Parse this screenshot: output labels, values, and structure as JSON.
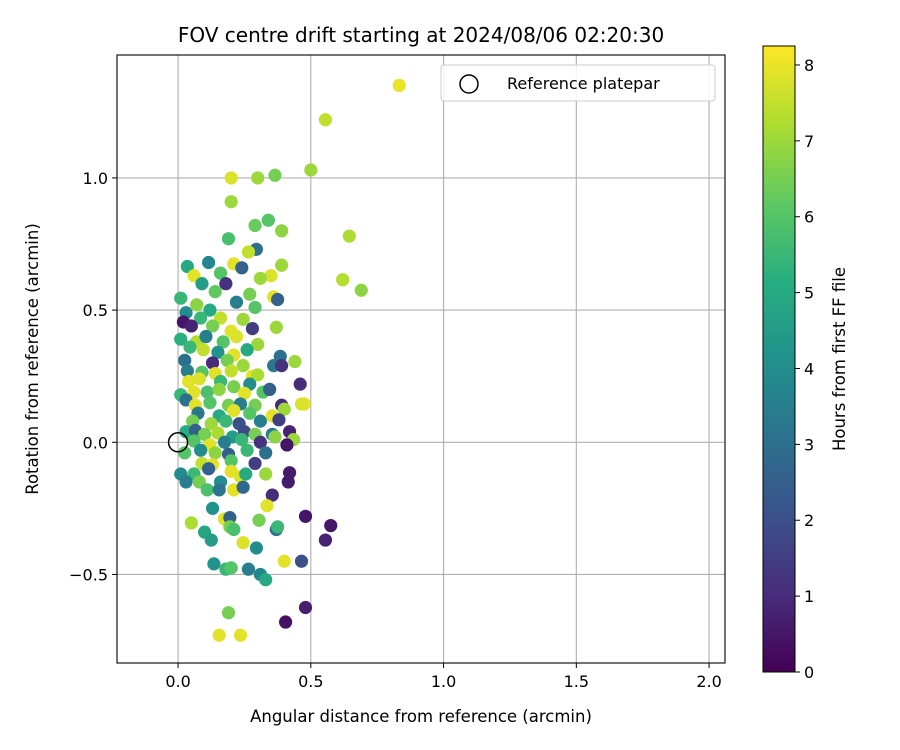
{
  "chart_data": {
    "type": "scatter",
    "title": "FOV centre drift starting at 2024/08/06 02:20:30",
    "xlabel": "Angular distance from reference (arcmin)",
    "ylabel": "Rotation from reference (arcmin)",
    "xlim": [
      -0.23,
      2.06
    ],
    "ylim": [
      -0.835,
      1.465
    ],
    "xticks": [
      0.0,
      0.5,
      1.0,
      1.5,
      2.0
    ],
    "xtick_labels": [
      "0.0",
      "0.5",
      "1.0",
      "1.5",
      "2.0"
    ],
    "yticks": [
      -0.5,
      0.0,
      0.5,
      1.0
    ],
    "ytick_labels": [
      "−0.5",
      "0.0",
      "0.5",
      "1.0"
    ],
    "grid": true,
    "legend": {
      "position": "top-right",
      "entries": [
        "Reference platepar"
      ]
    },
    "colorbar": {
      "label": "Hours from first FF file",
      "colormap": "viridis",
      "range": [
        0,
        8.25
      ],
      "ticks": [
        0,
        1,
        2,
        3,
        4,
        5,
        6,
        7,
        8
      ],
      "tick_labels": [
        "0",
        "1",
        "2",
        "3",
        "4",
        "5",
        "6",
        "7",
        "8"
      ]
    },
    "reference_point": {
      "x": 0.0,
      "y": 0.0,
      "label": "Reference platepar"
    },
    "points": [
      {
        "x": 0.833,
        "y": 1.35,
        "t": 8.0
      },
      {
        "x": 0.555,
        "y": 1.22,
        "t": 7.5
      },
      {
        "x": 0.5,
        "y": 1.03,
        "t": 7.0
      },
      {
        "x": 0.2,
        "y": 1.0,
        "t": 7.8
      },
      {
        "x": 0.3,
        "y": 1.0,
        "t": 7.0
      },
      {
        "x": 0.365,
        "y": 1.01,
        "t": 6.5
      },
      {
        "x": 0.2,
        "y": 0.91,
        "t": 7.0
      },
      {
        "x": 0.34,
        "y": 0.84,
        "t": 6.0
      },
      {
        "x": 0.29,
        "y": 0.82,
        "t": 6.3
      },
      {
        "x": 0.39,
        "y": 0.8,
        "t": 6.8
      },
      {
        "x": 0.645,
        "y": 0.78,
        "t": 7.2
      },
      {
        "x": 0.19,
        "y": 0.77,
        "t": 5.8
      },
      {
        "x": 0.295,
        "y": 0.73,
        "t": 3.0
      },
      {
        "x": 0.265,
        "y": 0.72,
        "t": 7.5
      },
      {
        "x": 0.39,
        "y": 0.67,
        "t": 7.0
      },
      {
        "x": 0.035,
        "y": 0.665,
        "t": 5.0
      },
      {
        "x": 0.115,
        "y": 0.68,
        "t": 3.8
      },
      {
        "x": 0.21,
        "y": 0.675,
        "t": 7.9
      },
      {
        "x": 0.62,
        "y": 0.615,
        "t": 7.3
      },
      {
        "x": 0.69,
        "y": 0.575,
        "t": 6.8
      },
      {
        "x": 0.06,
        "y": 0.63,
        "t": 7.9
      },
      {
        "x": 0.16,
        "y": 0.64,
        "t": 6.0
      },
      {
        "x": 0.24,
        "y": 0.66,
        "t": 2.5
      },
      {
        "x": 0.35,
        "y": 0.63,
        "t": 7.8
      },
      {
        "x": 0.31,
        "y": 0.62,
        "t": 7.0
      },
      {
        "x": 0.09,
        "y": 0.6,
        "t": 4.5
      },
      {
        "x": 0.14,
        "y": 0.57,
        "t": 6.2
      },
      {
        "x": 0.18,
        "y": 0.6,
        "t": 1.2
      },
      {
        "x": 0.27,
        "y": 0.56,
        "t": 6.5
      },
      {
        "x": 0.36,
        "y": 0.55,
        "t": 7.9
      },
      {
        "x": 0.375,
        "y": 0.54,
        "t": 2.5
      },
      {
        "x": 0.01,
        "y": 0.545,
        "t": 5.5
      },
      {
        "x": 0.07,
        "y": 0.52,
        "t": 6.8
      },
      {
        "x": 0.12,
        "y": 0.5,
        "t": 5.0
      },
      {
        "x": 0.22,
        "y": 0.53,
        "t": 3.5
      },
      {
        "x": 0.29,
        "y": 0.51,
        "t": 6.0
      },
      {
        "x": 0.03,
        "y": 0.49,
        "t": 4.0
      },
      {
        "x": 0.085,
        "y": 0.47,
        "t": 5.5
      },
      {
        "x": 0.16,
        "y": 0.47,
        "t": 7.5
      },
      {
        "x": 0.245,
        "y": 0.465,
        "t": 7.0
      },
      {
        "x": 0.02,
        "y": 0.455,
        "t": 0.5
      },
      {
        "x": 0.05,
        "y": 0.44,
        "t": 0.8
      },
      {
        "x": 0.13,
        "y": 0.44,
        "t": 6.5
      },
      {
        "x": 0.2,
        "y": 0.42,
        "t": 7.9
      },
      {
        "x": 0.28,
        "y": 0.43,
        "t": 1.5
      },
      {
        "x": 0.37,
        "y": 0.435,
        "t": 7.0
      },
      {
        "x": 0.01,
        "y": 0.39,
        "t": 5.2
      },
      {
        "x": 0.07,
        "y": 0.38,
        "t": 7.3
      },
      {
        "x": 0.105,
        "y": 0.4,
        "t": 3.5
      },
      {
        "x": 0.17,
        "y": 0.38,
        "t": 6.0
      },
      {
        "x": 0.22,
        "y": 0.4,
        "t": 7.8
      },
      {
        "x": 0.3,
        "y": 0.37,
        "t": 7.0
      },
      {
        "x": 0.045,
        "y": 0.36,
        "t": 5.5
      },
      {
        "x": 0.095,
        "y": 0.35,
        "t": 7.5
      },
      {
        "x": 0.15,
        "y": 0.34,
        "t": 4.2
      },
      {
        "x": 0.21,
        "y": 0.33,
        "t": 7.9
      },
      {
        "x": 0.26,
        "y": 0.35,
        "t": 5.0
      },
      {
        "x": 0.385,
        "y": 0.325,
        "t": 3.0
      },
      {
        "x": 0.44,
        "y": 0.305,
        "t": 7.0
      },
      {
        "x": 0.025,
        "y": 0.31,
        "t": 3.0
      },
      {
        "x": 0.13,
        "y": 0.3,
        "t": 1.0
      },
      {
        "x": 0.185,
        "y": 0.31,
        "t": 6.5
      },
      {
        "x": 0.245,
        "y": 0.29,
        "t": 7.0
      },
      {
        "x": 0.36,
        "y": 0.29,
        "t": 3.2
      },
      {
        "x": 0.39,
        "y": 0.29,
        "t": 1.2
      },
      {
        "x": 0.035,
        "y": 0.27,
        "t": 3.5
      },
      {
        "x": 0.09,
        "y": 0.265,
        "t": 6.0
      },
      {
        "x": 0.14,
        "y": 0.26,
        "t": 7.9
      },
      {
        "x": 0.2,
        "y": 0.27,
        "t": 7.5
      },
      {
        "x": 0.28,
        "y": 0.25,
        "t": 7.9
      },
      {
        "x": 0.3,
        "y": 0.255,
        "t": 7.2
      },
      {
        "x": 0.04,
        "y": 0.23,
        "t": 7.9
      },
      {
        "x": 0.08,
        "y": 0.24,
        "t": 7.8
      },
      {
        "x": 0.16,
        "y": 0.23,
        "t": 5.5
      },
      {
        "x": 0.21,
        "y": 0.21,
        "t": 6.5
      },
      {
        "x": 0.27,
        "y": 0.22,
        "t": 4.0
      },
      {
        "x": 0.46,
        "y": 0.22,
        "t": 1.0
      },
      {
        "x": 0.01,
        "y": 0.18,
        "t": 5.5
      },
      {
        "x": 0.06,
        "y": 0.19,
        "t": 7.9
      },
      {
        "x": 0.11,
        "y": 0.19,
        "t": 5.8
      },
      {
        "x": 0.155,
        "y": 0.2,
        "t": 6.8
      },
      {
        "x": 0.25,
        "y": 0.185,
        "t": 7.9
      },
      {
        "x": 0.32,
        "y": 0.19,
        "t": 6.0
      },
      {
        "x": 0.345,
        "y": 0.2,
        "t": 2.5
      },
      {
        "x": 0.475,
        "y": 0.145,
        "t": 7.9
      },
      {
        "x": 0.465,
        "y": 0.145,
        "t": 7.8
      },
      {
        "x": 0.03,
        "y": 0.16,
        "t": 3.0
      },
      {
        "x": 0.065,
        "y": 0.14,
        "t": 7.9
      },
      {
        "x": 0.12,
        "y": 0.15,
        "t": 6.0
      },
      {
        "x": 0.19,
        "y": 0.14,
        "t": 6.5
      },
      {
        "x": 0.235,
        "y": 0.145,
        "t": 3.5
      },
      {
        "x": 0.29,
        "y": 0.14,
        "t": 6.5
      },
      {
        "x": 0.39,
        "y": 0.14,
        "t": 1.0
      },
      {
        "x": 0.4,
        "y": 0.125,
        "t": 7.0
      },
      {
        "x": 0.075,
        "y": 0.11,
        "t": 3.2
      },
      {
        "x": 0.155,
        "y": 0.1,
        "t": 5.0
      },
      {
        "x": 0.21,
        "y": 0.12,
        "t": 7.9
      },
      {
        "x": 0.27,
        "y": 0.11,
        "t": 6.0
      },
      {
        "x": 0.355,
        "y": 0.1,
        "t": 7.9
      },
      {
        "x": 0.055,
        "y": 0.08,
        "t": 6.5
      },
      {
        "x": 0.125,
        "y": 0.07,
        "t": 7.0
      },
      {
        "x": 0.18,
        "y": 0.08,
        "t": 5.5
      },
      {
        "x": 0.23,
        "y": 0.07,
        "t": 2.0
      },
      {
        "x": 0.31,
        "y": 0.08,
        "t": 3.5
      },
      {
        "x": 0.38,
        "y": 0.085,
        "t": 1.5
      },
      {
        "x": 0.03,
        "y": 0.04,
        "t": 5.0
      },
      {
        "x": 0.065,
        "y": 0.045,
        "t": 2.5
      },
      {
        "x": 0.1,
        "y": 0.03,
        "t": 6.5
      },
      {
        "x": 0.15,
        "y": 0.035,
        "t": 7.2
      },
      {
        "x": 0.205,
        "y": 0.02,
        "t": 4.5
      },
      {
        "x": 0.25,
        "y": 0.04,
        "t": 1.8
      },
      {
        "x": 0.29,
        "y": 0.03,
        "t": 6.5
      },
      {
        "x": 0.355,
        "y": 0.03,
        "t": 3.5
      },
      {
        "x": 0.42,
        "y": 0.04,
        "t": 0.8
      },
      {
        "x": 0.435,
        "y": 0.01,
        "t": 7.0
      },
      {
        "x": 0.365,
        "y": 0.02,
        "t": 6.8
      },
      {
        "x": 0.06,
        "y": 0.005,
        "t": 6.0
      },
      {
        "x": 0.12,
        "y": -0.01,
        "t": 7.9
      },
      {
        "x": 0.175,
        "y": 0.0,
        "t": 3.5
      },
      {
        "x": 0.24,
        "y": 0.01,
        "t": 5.5
      },
      {
        "x": 0.31,
        "y": 0.0,
        "t": 1.2
      },
      {
        "x": 0.41,
        "y": -0.01,
        "t": 0.5
      },
      {
        "x": 0.025,
        "y": -0.04,
        "t": 6.0
      },
      {
        "x": 0.085,
        "y": -0.03,
        "t": 4.0
      },
      {
        "x": 0.14,
        "y": -0.04,
        "t": 6.8
      },
      {
        "x": 0.19,
        "y": -0.045,
        "t": 2.5
      },
      {
        "x": 0.26,
        "y": -0.03,
        "t": 5.5
      },
      {
        "x": 0.33,
        "y": -0.04,
        "t": 3.0
      },
      {
        "x": 0.09,
        "y": -0.08,
        "t": 7.5
      },
      {
        "x": 0.13,
        "y": -0.085,
        "t": 7.9
      },
      {
        "x": 0.2,
        "y": -0.07,
        "t": 6.0
      },
      {
        "x": 0.29,
        "y": -0.08,
        "t": 1.5
      },
      {
        "x": 0.42,
        "y": -0.115,
        "t": 0.6
      },
      {
        "x": 0.01,
        "y": -0.12,
        "t": 4.0
      },
      {
        "x": 0.06,
        "y": -0.12,
        "t": 5.5
      },
      {
        "x": 0.115,
        "y": -0.1,
        "t": 2.5
      },
      {
        "x": 0.2,
        "y": -0.11,
        "t": 7.9
      },
      {
        "x": 0.235,
        "y": -0.13,
        "t": 7.8
      },
      {
        "x": 0.255,
        "y": -0.12,
        "t": 5.0
      },
      {
        "x": 0.33,
        "y": -0.12,
        "t": 7.0
      },
      {
        "x": 0.415,
        "y": -0.15,
        "t": 0.6
      },
      {
        "x": 0.03,
        "y": -0.15,
        "t": 3.5
      },
      {
        "x": 0.08,
        "y": -0.15,
        "t": 6.5
      },
      {
        "x": 0.16,
        "y": -0.15,
        "t": 4.0
      },
      {
        "x": 0.21,
        "y": -0.18,
        "t": 7.9
      },
      {
        "x": 0.245,
        "y": -0.17,
        "t": 2.8
      },
      {
        "x": 0.11,
        "y": -0.18,
        "t": 5.8
      },
      {
        "x": 0.155,
        "y": -0.18,
        "t": 3.2
      },
      {
        "x": 0.355,
        "y": -0.2,
        "t": 1.0
      },
      {
        "x": 0.335,
        "y": -0.24,
        "t": 7.9
      },
      {
        "x": 0.13,
        "y": -0.25,
        "t": 4.2
      },
      {
        "x": 0.48,
        "y": -0.28,
        "t": 0.5
      },
      {
        "x": 0.05,
        "y": -0.305,
        "t": 7.2
      },
      {
        "x": 0.175,
        "y": -0.29,
        "t": 7.9
      },
      {
        "x": 0.195,
        "y": -0.285,
        "t": 2.5
      },
      {
        "x": 0.305,
        "y": -0.295,
        "t": 6.5
      },
      {
        "x": 0.575,
        "y": -0.315,
        "t": 0.5
      },
      {
        "x": 0.1,
        "y": -0.34,
        "t": 4.8
      },
      {
        "x": 0.195,
        "y": -0.32,
        "t": 6.5
      },
      {
        "x": 0.21,
        "y": -0.33,
        "t": 5.8
      },
      {
        "x": 0.37,
        "y": -0.33,
        "t": 3.0
      },
      {
        "x": 0.375,
        "y": -0.32,
        "t": 5.5
      },
      {
        "x": 0.555,
        "y": -0.37,
        "t": 0.8
      },
      {
        "x": 0.125,
        "y": -0.37,
        "t": 4.5
      },
      {
        "x": 0.245,
        "y": -0.38,
        "t": 7.8
      },
      {
        "x": 0.295,
        "y": -0.4,
        "t": 4.0
      },
      {
        "x": 0.4,
        "y": -0.45,
        "t": 7.9
      },
      {
        "x": 0.465,
        "y": -0.45,
        "t": 2.0
      },
      {
        "x": 0.135,
        "y": -0.46,
        "t": 4.2
      },
      {
        "x": 0.18,
        "y": -0.48,
        "t": 5.5
      },
      {
        "x": 0.2,
        "y": -0.475,
        "t": 6.0
      },
      {
        "x": 0.265,
        "y": -0.48,
        "t": 3.5
      },
      {
        "x": 0.31,
        "y": -0.5,
        "t": 3.8
      },
      {
        "x": 0.33,
        "y": -0.52,
        "t": 5.0
      },
      {
        "x": 0.19,
        "y": -0.645,
        "t": 6.5
      },
      {
        "x": 0.48,
        "y": -0.625,
        "t": 0.7
      },
      {
        "x": 0.405,
        "y": -0.68,
        "t": 0.4
      },
      {
        "x": 0.155,
        "y": -0.73,
        "t": 7.9
      },
      {
        "x": 0.235,
        "y": -0.73,
        "t": 7.9
      }
    ]
  }
}
